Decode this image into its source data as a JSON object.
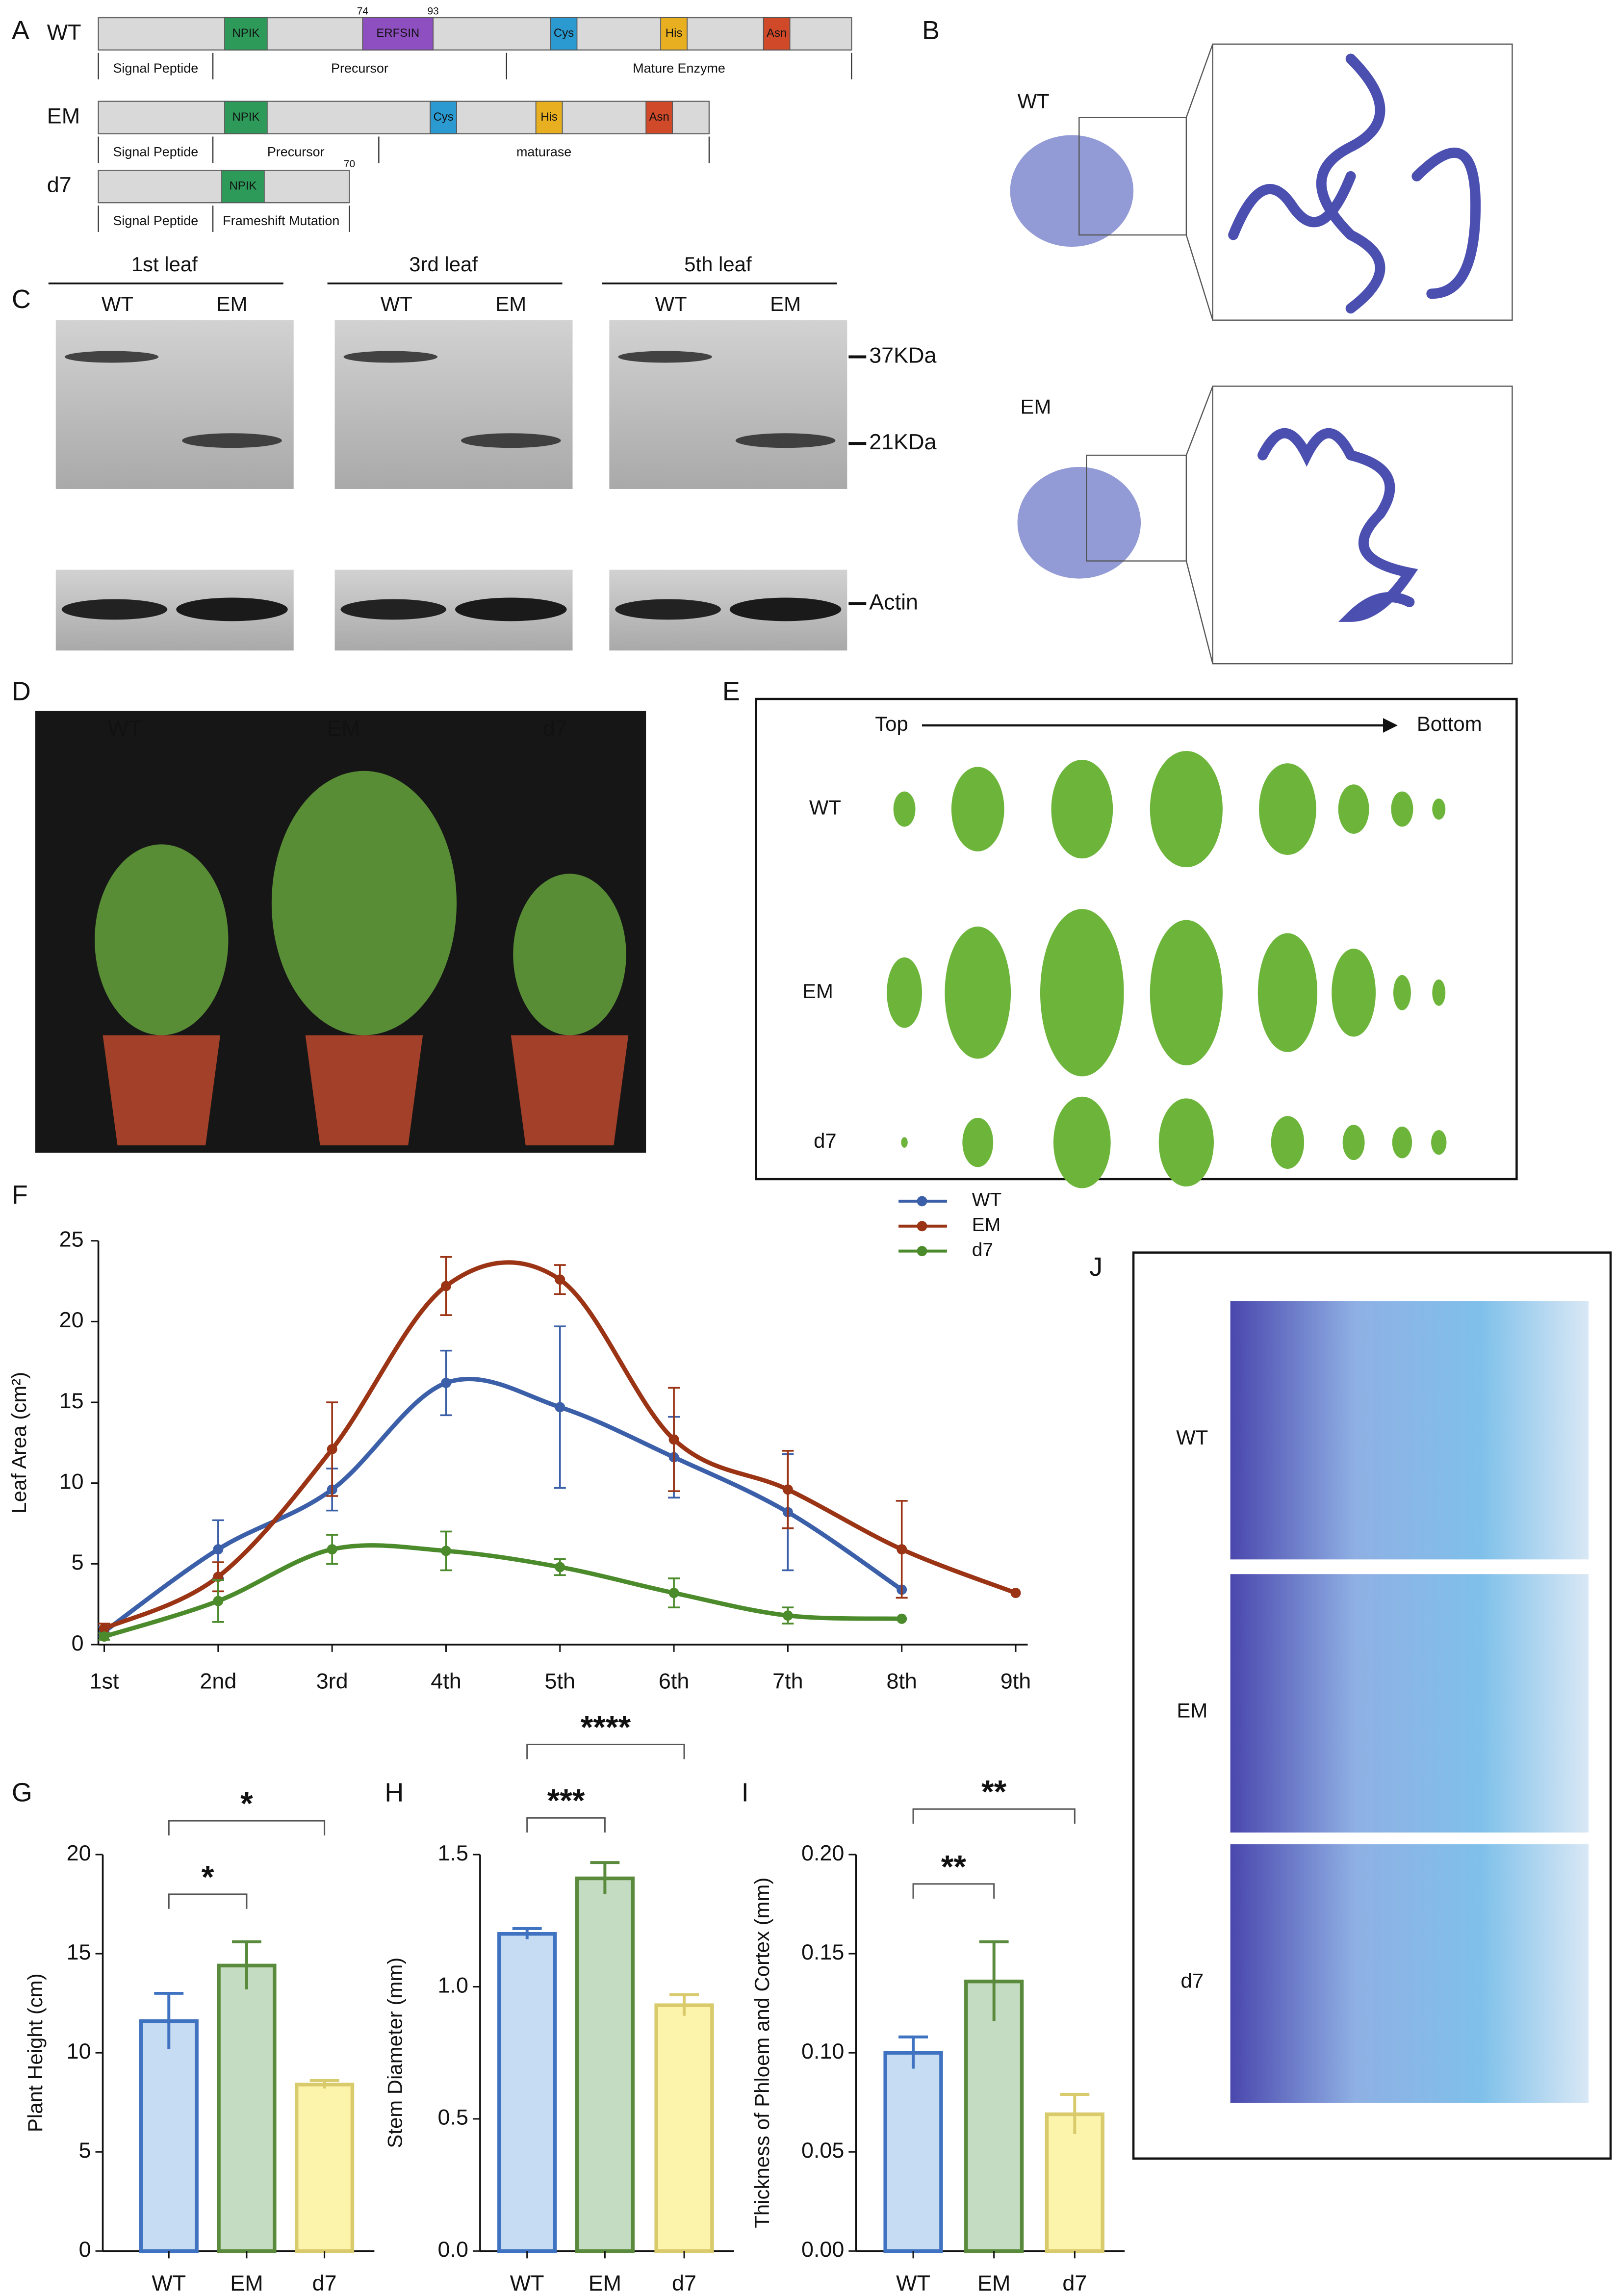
{
  "panel_labels": [
    "A",
    "B",
    "C",
    "D",
    "E",
    "F",
    "G",
    "H",
    "I",
    "J"
  ],
  "panel_a": {
    "rows": [
      {
        "label": "WT",
        "domains": [
          "NPIK",
          "ERFSIN",
          "Cys",
          "His",
          "Asn"
        ],
        "positions": [
          74,
          93
        ],
        "regions": [
          "Signal Peptide",
          "Precursor",
          "Mature Enzyme"
        ]
      },
      {
        "label": "EM",
        "domains": [
          "NPIK",
          "Cys",
          "His",
          "Asn"
        ],
        "regions": [
          "Signal Peptide",
          "Precursor",
          "maturase"
        ]
      },
      {
        "label": "d7",
        "domains": [
          "NPIK"
        ],
        "positions": [
          70
        ],
        "regions": [
          "Signal Peptide",
          "Frameshift Mutation"
        ]
      }
    ]
  },
  "panel_b": {
    "labels": [
      "WT",
      "EM"
    ]
  },
  "panel_c": {
    "headers": [
      "1st leaf",
      "3rd leaf",
      "5th leaf"
    ],
    "lanes": [
      "WT",
      "EM"
    ],
    "markers": [
      "37KDa",
      "21KDa",
      "Actin"
    ]
  },
  "panel_d": {
    "labels": [
      "WT",
      "EM",
      "d7"
    ]
  },
  "panel_e": {
    "direction": [
      "Top",
      "Bottom"
    ],
    "rows": [
      "WT",
      "EM",
      "d7"
    ]
  },
  "panel_j": {
    "labels": [
      "WT",
      "EM",
      "d7"
    ]
  },
  "chart_data": [
    {
      "type": "line",
      "ylabel": "Leaf Area (cm²)",
      "categories": [
        "1st",
        "2nd",
        "3rd",
        "4th",
        "5th",
        "6th",
        "7th",
        "8th",
        "9th"
      ],
      "ylim": [
        0,
        25
      ],
      "yticks": [
        0,
        5,
        10,
        15,
        20,
        25
      ],
      "legend": "upper right",
      "series": [
        {
          "name": "WT",
          "color": "#3b5fa8",
          "values": [
            0.8,
            5.9,
            9.6,
            16.2,
            14.7,
            11.6,
            8.2,
            3.4,
            null
          ],
          "errors": [
            0.3,
            1.8,
            1.3,
            2.0,
            5.0,
            2.5,
            3.6,
            0,
            null
          ]
        },
        {
          "name": "EM",
          "color": "#9a3415",
          "values": [
            1.0,
            4.2,
            12.1,
            22.2,
            22.6,
            12.7,
            9.6,
            5.9,
            3.2
          ],
          "errors": [
            0.3,
            0.9,
            2.9,
            1.8,
            0.9,
            3.2,
            2.4,
            3.0,
            0
          ]
        },
        {
          "name": "d7",
          "color": "#4b8b2b",
          "values": [
            0.5,
            2.7,
            5.9,
            5.8,
            4.8,
            3.2,
            1.8,
            1.6,
            null
          ],
          "errors": [
            0.2,
            1.3,
            0.9,
            1.2,
            0.5,
            0.9,
            0.5,
            0,
            null
          ]
        }
      ]
    },
    {
      "type": "bar",
      "ylabel": "Plant Height (cm)",
      "categories": [
        "WT",
        "EM",
        "d7"
      ],
      "values": [
        11.6,
        14.4,
        8.4
      ],
      "errors": [
        1.4,
        1.2,
        0.2
      ],
      "colors": [
        "#c6dcf3",
        "#c4dcc1",
        "#fdf4ab"
      ],
      "edgecolors": [
        "#3f72c0",
        "#5a8a3c",
        "#d9ca6c"
      ],
      "ylim": [
        0,
        20
      ],
      "yticks": [
        0,
        5,
        10,
        15,
        20
      ],
      "significance": [
        {
          "between": [
            "WT",
            "EM"
          ],
          "label": "*"
        },
        {
          "between": [
            "WT",
            "d7"
          ],
          "label": "*"
        }
      ]
    },
    {
      "type": "bar",
      "ylabel": "Stem Diameter (mm)",
      "categories": [
        "WT",
        "EM",
        "d7"
      ],
      "values": [
        1.2,
        1.41,
        0.93
      ],
      "errors": [
        0.02,
        0.06,
        0.04
      ],
      "colors": [
        "#c6dcf3",
        "#c4dcc1",
        "#fdf4ab"
      ],
      "edgecolors": [
        "#3f72c0",
        "#5a8a3c",
        "#d9ca6c"
      ],
      "ylim": [
        0,
        1.5
      ],
      "yticks": [
        {
          "value": 0,
          "label": "0.0"
        },
        0.5,
        {
          "value": 1,
          "label": "1.0"
        },
        1.5
      ],
      "significance": [
        {
          "between": [
            "WT",
            "EM"
          ],
          "label": "***"
        },
        {
          "between": [
            "WT",
            "d7"
          ],
          "label": "****"
        }
      ]
    },
    {
      "type": "bar",
      "ylabel": "Thickness of Phloem and Cortex (mm)",
      "categories": [
        "WT",
        "EM",
        "d7"
      ],
      "values": [
        0.1,
        0.136,
        0.069
      ],
      "errors": [
        0.008,
        0.02,
        0.01
      ],
      "colors": [
        "#c6dcf3",
        "#c4dcc1",
        "#fdf4ab"
      ],
      "edgecolors": [
        "#3f72c0",
        "#5a8a3c",
        "#d9ca6c"
      ],
      "ylim": [
        0,
        0.2
      ],
      "yticks": [
        {
          "value": 0,
          "label": "0.00"
        },
        0.05,
        {
          "value": 0.1,
          "label": "0.10"
        },
        0.15,
        {
          "value": 0.2,
          "label": "0.20"
        }
      ],
      "significance": [
        {
          "between": [
            "WT",
            "EM"
          ],
          "label": "**"
        },
        {
          "between": [
            "WT",
            "d7"
          ],
          "label": "**"
        }
      ]
    }
  ]
}
